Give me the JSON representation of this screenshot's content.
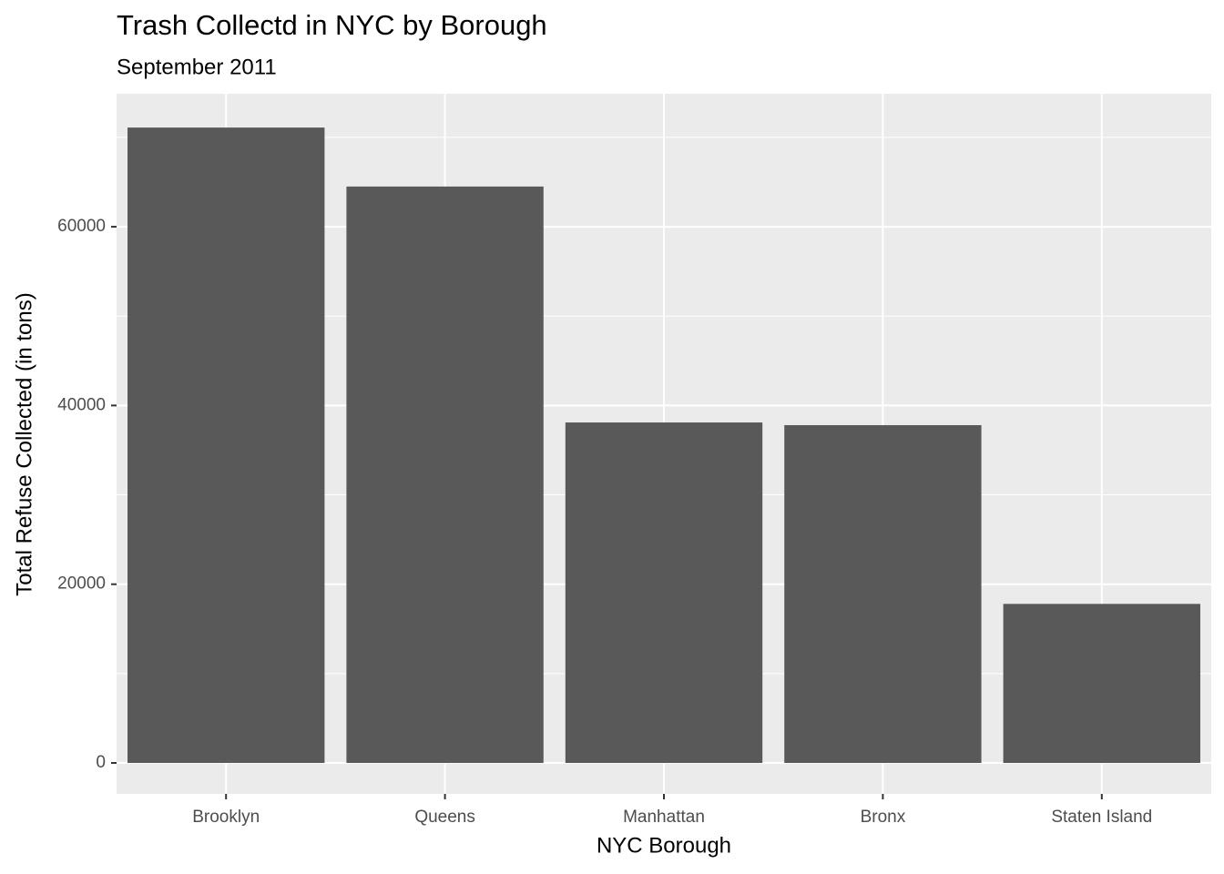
{
  "chart_data": {
    "type": "bar",
    "title": "Trash Collectd in NYC by Borough",
    "subtitle": "September 2011",
    "x_label": "NYC Borough",
    "y_label": "Total Refuse Collected (in tons)",
    "categories": [
      "Brooklyn",
      "Queens",
      "Manhattan",
      "Bronx",
      "Staten Island"
    ],
    "values": [
      71100,
      64500,
      38100,
      37800,
      17800
    ],
    "color": "#595959",
    "ylim": [
      -3460,
      74880
    ],
    "yticks": [
      0,
      20000,
      40000,
      60000
    ],
    "minor_yticks": [
      10000,
      30000,
      50000,
      70000
    ],
    "grid": true
  }
}
